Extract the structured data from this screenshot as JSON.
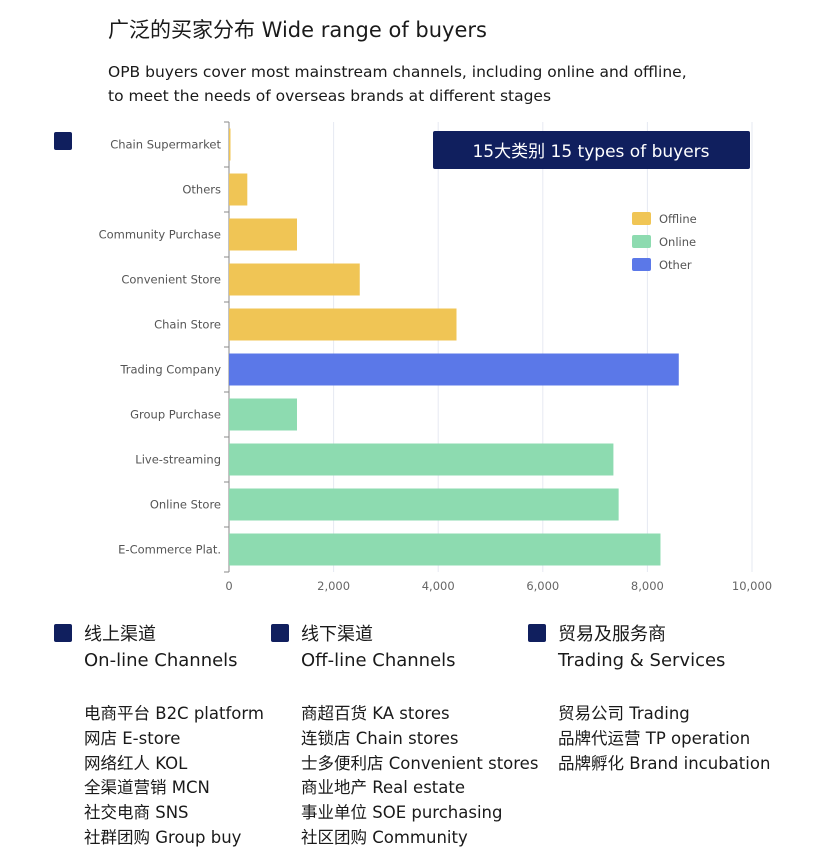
{
  "header": {
    "title": "广泛的买家分布  Wide range of buyers",
    "subtitle_lines": [
      "OPB buyers cover most mainstream channels, including online and offline,",
      "to meet the needs of overseas brands at different stages"
    ]
  },
  "chart_data": {
    "type": "bar",
    "orientation": "horizontal",
    "banner": "15大类别   15 types of buyers",
    "categories": [
      "Chain Supermarket",
      "Others",
      "Community Purchase",
      "Convenient Store",
      "Chain Store",
      "Trading Company",
      "Group Purchase",
      "Live-streaming",
      "Online Store",
      "E-Commerce Plat."
    ],
    "values": [
      20,
      350,
      1300,
      2500,
      4350,
      8600,
      1300,
      7350,
      7450,
      8250
    ],
    "groups": [
      "Offline",
      "Offline",
      "Offline",
      "Offline",
      "Offline",
      "Other",
      "Online",
      "Online",
      "Online",
      "Online"
    ],
    "xlim": [
      0,
      10000
    ],
    "xticks": [
      0,
      2000,
      4000,
      6000,
      8000,
      10000
    ],
    "xtick_labels": [
      "0",
      "2,000",
      "4,000",
      "6,000",
      "8,000",
      "10,000"
    ],
    "grid": true,
    "legend_position": "right",
    "legend": [
      {
        "name": "Offline",
        "color": "#f0c555"
      },
      {
        "name": "Online",
        "color": "#8ddbb0"
      },
      {
        "name": "Other",
        "color": "#5b78e8"
      }
    ],
    "banner_color": "#101f5e"
  },
  "sections": [
    {
      "zh": "线上渠道",
      "en": "On-line Channels",
      "items": [
        "电商平台 B2C platform",
        "网店 E-store",
        "网络红人 KOL",
        "全渠道营销 MCN",
        "社交电商 SNS",
        "社群团购 Group buy"
      ]
    },
    {
      "zh": "线下渠道",
      "en": "Off-line Channels",
      "items": [
        "商超百货  KA stores",
        "连锁店 Chain stores",
        "士多便利店 Convenient stores",
        "商业地产 Real estate",
        "事业单位 SOE purchasing",
        "社区团购 Community"
      ]
    },
    {
      "zh": "贸易及服务商",
      "en": "Trading & Services",
      "items": [
        "贸易公司 Trading",
        "品牌代运营 TP operation",
        "品牌孵化 Brand incubation"
      ]
    }
  ]
}
